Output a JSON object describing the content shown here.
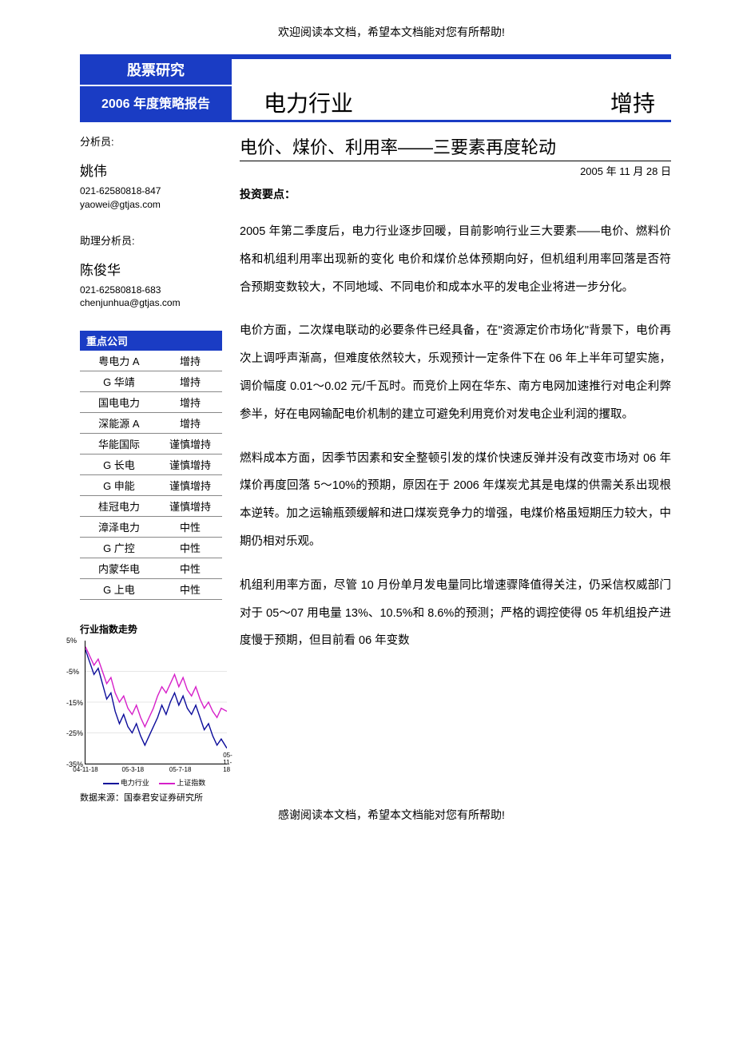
{
  "top_note": "欢迎阅读本文档，希望本文档能对您有所帮助!",
  "bottom_note": "感谢阅读本文档，希望本文档能对您有所帮助!",
  "header": {
    "category": "股票研究",
    "report_type": "2006 年度策略报告",
    "industry": "电力行业",
    "rating": "增持"
  },
  "analysts": {
    "label1": "分析员:",
    "name1": "姚伟",
    "phone1": "021-62580818-847",
    "email1": "yaowei@gtjas.com",
    "label2": "助理分析员:",
    "name2": "陈俊华",
    "phone2": "021-62580818-683",
    "email2": "chenjunhua@gtjas.com"
  },
  "companies": {
    "header": "重点公司",
    "rows": [
      {
        "name": "粤电力 A",
        "rating": "增持"
      },
      {
        "name": "G 华靖",
        "rating": "增持"
      },
      {
        "name": "国电电力",
        "rating": "增持"
      },
      {
        "name": "深能源 A",
        "rating": "增持"
      },
      {
        "name": "华能国际",
        "rating": "谨慎增持"
      },
      {
        "name": "G 长电",
        "rating": "谨慎增持"
      },
      {
        "name": "G 申能",
        "rating": "谨慎增持"
      },
      {
        "name": "桂冠电力",
        "rating": "谨慎增持"
      },
      {
        "name": "漳泽电力",
        "rating": "中性"
      },
      {
        "name": "G 广控",
        "rating": "中性"
      },
      {
        "name": "内蒙华电",
        "rating": "中性"
      },
      {
        "name": "G 上电",
        "rating": "中性"
      }
    ]
  },
  "chart": {
    "title": "行业指数走势",
    "type": "line",
    "ylim": [
      -35,
      5
    ],
    "ytick_step": 10,
    "yticks": [
      "5%",
      "-5%",
      "-15%",
      "-25%",
      "-35%"
    ],
    "xticks": [
      "04-11-18",
      "05-3-18",
      "05-7-18",
      "05-11-18"
    ],
    "series": [
      {
        "name": "电力行业",
        "color": "#0b0b9a",
        "points": [
          [
            0,
            2
          ],
          [
            3,
            -2
          ],
          [
            6,
            -6
          ],
          [
            9,
            -4
          ],
          [
            12,
            -9
          ],
          [
            15,
            -14
          ],
          [
            18,
            -12
          ],
          [
            21,
            -18
          ],
          [
            24,
            -22
          ],
          [
            27,
            -19
          ],
          [
            30,
            -23
          ],
          [
            33,
            -25
          ],
          [
            36,
            -22
          ],
          [
            39,
            -26
          ],
          [
            42,
            -29
          ],
          [
            45,
            -26
          ],
          [
            48,
            -23
          ],
          [
            51,
            -20
          ],
          [
            54,
            -16
          ],
          [
            57,
            -19
          ],
          [
            60,
            -15
          ],
          [
            63,
            -12
          ],
          [
            66,
            -16
          ],
          [
            69,
            -13
          ],
          [
            72,
            -17
          ],
          [
            75,
            -19
          ],
          [
            78,
            -16
          ],
          [
            81,
            -20
          ],
          [
            84,
            -24
          ],
          [
            87,
            -22
          ],
          [
            90,
            -26
          ],
          [
            93,
            -29
          ],
          [
            96,
            -27
          ],
          [
            100,
            -30
          ]
        ]
      },
      {
        "name": "上证指数",
        "color": "#d61fc9",
        "points": [
          [
            0,
            3
          ],
          [
            3,
            0
          ],
          [
            6,
            -3
          ],
          [
            9,
            -1
          ],
          [
            12,
            -5
          ],
          [
            15,
            -9
          ],
          [
            18,
            -7
          ],
          [
            21,
            -12
          ],
          [
            24,
            -15
          ],
          [
            27,
            -13
          ],
          [
            30,
            -17
          ],
          [
            33,
            -19
          ],
          [
            36,
            -16
          ],
          [
            39,
            -20
          ],
          [
            42,
            -23
          ],
          [
            45,
            -20
          ],
          [
            48,
            -17
          ],
          [
            51,
            -13
          ],
          [
            54,
            -10
          ],
          [
            57,
            -12
          ],
          [
            60,
            -9
          ],
          [
            63,
            -6
          ],
          [
            66,
            -10
          ],
          [
            69,
            -7
          ],
          [
            72,
            -11
          ],
          [
            75,
            -13
          ],
          [
            78,
            -10
          ],
          [
            81,
            -14
          ],
          [
            84,
            -17
          ],
          [
            87,
            -15
          ],
          [
            90,
            -18
          ],
          [
            93,
            -20
          ],
          [
            96,
            -17
          ],
          [
            100,
            -18
          ]
        ]
      }
    ],
    "legend_s1": "电力行业",
    "legend_s2": "上证指数",
    "source": "数据来源：国泰君安证券研究所",
    "grid_color": "#cccccc",
    "background_color": "#ffffff"
  },
  "article": {
    "title": "电价、煤价、利用率——三要素再度轮动",
    "date": "2005 年 11 月 28 日",
    "section_head": "投资要点：",
    "p1": "2005 年第二季度后，电力行业逐步回暖，目前影响行业三大要素——电价、燃料价格和机组利用率出现新的变化 电价和煤价总体预期向好，但机组利用率回落是否符合预期变数较大，不同地域、不同电价和成本水平的发电企业将进一步分化。",
    "p2": "电价方面，二次煤电联动的必要条件已经具备，在\"资源定价市场化\"背景下，电价再次上调呼声渐高，但难度依然较大，乐观预计一定条件下在 06 年上半年可望实施，调价幅度 0.01～0.02 元/千瓦时。而竞价上网在华东、南方电网加速推行对电企利弊参半，好在电网输配电价机制的建立可避免利用竞价对发电企业利润的攫取。",
    "p3": "燃料成本方面，因季节因素和安全整顿引发的煤价快速反弹并没有改变市场对 06 年煤价再度回落 5～10%的预期，原因在于 2006 年煤炭尤其是电煤的供需关系出现根本逆转。加之运输瓶颈缓解和进口煤炭竞争力的增强，电煤价格虽短期压力较大，中期仍相对乐观。",
    "p4": "机组利用率方面，尽管 10 月份单月发电量同比增速骤降值得关注，仍采信权威部门对于 05～07 用电量 13%、10.5%和 8.6%的预测；严格的调控使得 05 年机组投产进度慢于预期，但目前看 06 年变数"
  },
  "colors": {
    "brand": "#1a3cc4",
    "series1": "#0b0b9a",
    "series2": "#d61fc9"
  }
}
